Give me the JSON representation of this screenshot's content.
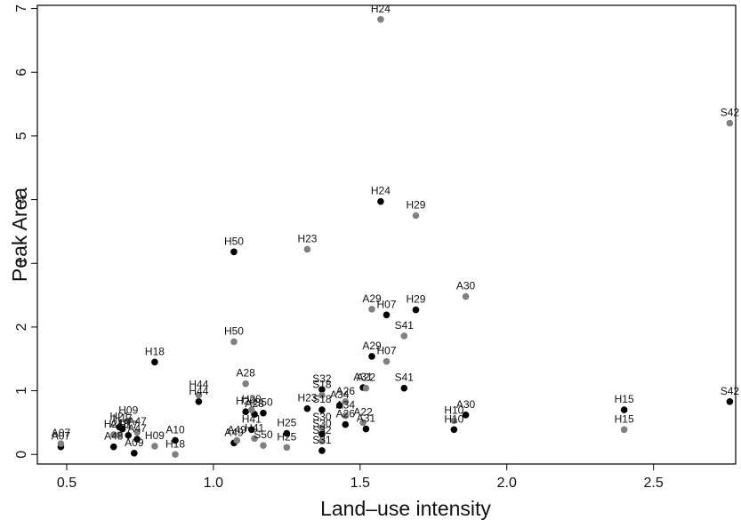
{
  "chart_data": {
    "type": "scatter",
    "xlabel": "Land–use intensity",
    "ylabel": "Peak Area",
    "xlim": [
      0.4,
      2.78
    ],
    "ylim": [
      -0.15,
      7.05
    ],
    "x_ticks": [
      0.5,
      1.0,
      1.5,
      2.0,
      2.5
    ],
    "x_tick_labels": [
      "0.5",
      "1.0",
      "1.5",
      "2.0",
      "2.5"
    ],
    "y_ticks": [
      0,
      1,
      2,
      3,
      4,
      5,
      6,
      7
    ],
    "y_tick_labels": [
      "0",
      "1",
      "2",
      "3",
      "4",
      "5",
      "6",
      "7"
    ],
    "grid": false,
    "legend": "none",
    "colors": {
      "black_series": "#000000",
      "grey_series": "#808080"
    },
    "series": [
      {
        "color": "#000000",
        "points": [
          {
            "x": 0.48,
            "y": 0.12,
            "label": "A07"
          },
          {
            "x": 0.66,
            "y": 0.12,
            "label": "A48"
          },
          {
            "x": 0.68,
            "y": 0.43,
            "label": "H21"
          },
          {
            "x": 0.69,
            "y": 0.4,
            "label": "H17"
          },
          {
            "x": 0.71,
            "y": 0.3,
            "label": "H17"
          },
          {
            "x": 0.73,
            "y": 0.02,
            "label": "A09"
          },
          {
            "x": 0.74,
            "y": 0.24,
            "label": "A47"
          },
          {
            "x": 0.8,
            "y": 1.45,
            "label": "H18"
          },
          {
            "x": 0.87,
            "y": 0.22,
            "label": "A10"
          },
          {
            "x": 0.95,
            "y": 0.83,
            "label": "H44"
          },
          {
            "x": 1.07,
            "y": 0.18,
            "label": "A49"
          },
          {
            "x": 1.07,
            "y": 3.18,
            "label": "H50"
          },
          {
            "x": 1.11,
            "y": 0.67,
            "label": "H20"
          },
          {
            "x": 1.13,
            "y": 0.39,
            "label": "H41"
          },
          {
            "x": 1.14,
            "y": 0.63,
            "label": "A28"
          },
          {
            "x": 1.17,
            "y": 0.65,
            "label": "S50"
          },
          {
            "x": 1.25,
            "y": 0.33,
            "label": "H25"
          },
          {
            "x": 1.32,
            "y": 0.72,
            "label": "H23"
          },
          {
            "x": 1.37,
            "y": 1.02,
            "label": "S32"
          },
          {
            "x": 1.37,
            "y": 0.7,
            "label": "S18"
          },
          {
            "x": 1.37,
            "y": 0.32,
            "label": "S30"
          },
          {
            "x": 1.37,
            "y": 0.06,
            "label": "S31"
          },
          {
            "x": 1.43,
            "y": 0.77,
            "label": "A34"
          },
          {
            "x": 1.45,
            "y": 0.47,
            "label": "A26"
          },
          {
            "x": 1.51,
            "y": 1.05,
            "label": "A31"
          },
          {
            "x": 1.52,
            "y": 0.4,
            "label": "A31"
          },
          {
            "x": 1.54,
            "y": 1.54,
            "label": "A29"
          },
          {
            "x": 1.57,
            "y": 3.97,
            "label": "H24"
          },
          {
            "x": 1.59,
            "y": 2.19,
            "label": "H07"
          },
          {
            "x": 1.65,
            "y": 1.04,
            "label": "S41"
          },
          {
            "x": 1.69,
            "y": 2.27,
            "label": "H29"
          },
          {
            "x": 1.82,
            "y": 0.39,
            "label": "H10"
          },
          {
            "x": 1.86,
            "y": 0.62,
            "label": "A30"
          },
          {
            "x": 2.4,
            "y": 0.7,
            "label": "H15"
          },
          {
            "x": 2.76,
            "y": 0.83,
            "label": "S42"
          }
        ]
      },
      {
        "color": "#808080",
        "points": [
          {
            "x": 0.48,
            "y": 0.17,
            "label": "A07"
          },
          {
            "x": 0.66,
            "y": 0.31,
            "label": "H21"
          },
          {
            "x": 0.68,
            "y": 0.31,
            "label": "A48"
          },
          {
            "x": 0.71,
            "y": 0.53,
            "label": "H09"
          },
          {
            "x": 0.74,
            "y": 0.35,
            "label": "A47"
          },
          {
            "x": 0.8,
            "y": 0.13,
            "label": "H09"
          },
          {
            "x": 0.87,
            "y": 0.0,
            "label": "H18"
          },
          {
            "x": 0.95,
            "y": 0.93,
            "label": "H44"
          },
          {
            "x": 1.07,
            "y": 1.77,
            "label": "H50"
          },
          {
            "x": 1.08,
            "y": 0.22,
            "label": "A49"
          },
          {
            "x": 1.11,
            "y": 1.11,
            "label": "A28"
          },
          {
            "x": 1.13,
            "y": 0.7,
            "label": "H20"
          },
          {
            "x": 1.14,
            "y": 0.25,
            "label": "H41"
          },
          {
            "x": 1.17,
            "y": 0.14,
            "label": "S50"
          },
          {
            "x": 1.25,
            "y": 0.11,
            "label": "H25"
          },
          {
            "x": 1.32,
            "y": 3.22,
            "label": "H23"
          },
          {
            "x": 1.37,
            "y": 0.93,
            "label": "S18"
          },
          {
            "x": 1.37,
            "y": 0.42,
            "label": "S30"
          },
          {
            "x": 1.37,
            "y": 0.21,
            "label": "S32"
          },
          {
            "x": 1.45,
            "y": 0.83,
            "label": "A26"
          },
          {
            "x": 1.45,
            "y": 0.61,
            "label": "A34"
          },
          {
            "x": 1.51,
            "y": 0.5,
            "label": "A22"
          },
          {
            "x": 1.52,
            "y": 1.04,
            "label": "A22"
          },
          {
            "x": 1.54,
            "y": 2.28,
            "label": "A29"
          },
          {
            "x": 1.57,
            "y": 6.83,
            "label": "H24"
          },
          {
            "x": 1.59,
            "y": 1.46,
            "label": "H07"
          },
          {
            "x": 1.65,
            "y": 1.86,
            "label": "S41"
          },
          {
            "x": 1.69,
            "y": 3.75,
            "label": "H29"
          },
          {
            "x": 1.82,
            "y": 0.53,
            "label": "H10"
          },
          {
            "x": 1.86,
            "y": 2.48,
            "label": "A30"
          },
          {
            "x": 2.4,
            "y": 0.39,
            "label": "H15"
          },
          {
            "x": 2.76,
            "y": 5.2,
            "label": "S42"
          }
        ]
      }
    ]
  }
}
